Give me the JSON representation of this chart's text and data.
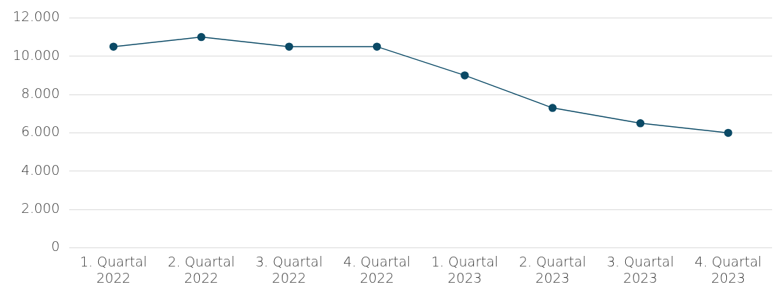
{
  "chart_data": {
    "type": "line",
    "categories": [
      "1. Quartal\n2022",
      "2. Quartal\n2022",
      "3. Quartal\n2022",
      "4. Quartal\n2022",
      "1. Quartal\n2023",
      "2. Quartal\n2023",
      "3. Quartal\n2023",
      "4. Quartal\n2023"
    ],
    "series": [
      {
        "color": "#0b4a66",
        "values": [
          10500,
          11000,
          10500,
          10500,
          9000,
          7300,
          6500,
          6000
        ]
      }
    ],
    "ylim": [
      0,
      12000
    ],
    "yticks": [
      {
        "value": 0,
        "label": "0"
      },
      {
        "value": 2000,
        "label": "2.000"
      },
      {
        "value": 4000,
        "label": "4.000"
      },
      {
        "value": 6000,
        "label": "6.000"
      },
      {
        "value": 8000,
        "label": "8.000"
      },
      {
        "value": 10000,
        "label": "10.000"
      },
      {
        "value": 12000,
        "label": "12.000"
      }
    ],
    "grid": "y",
    "legend": false,
    "marker": "circle",
    "line_style": "solid"
  }
}
